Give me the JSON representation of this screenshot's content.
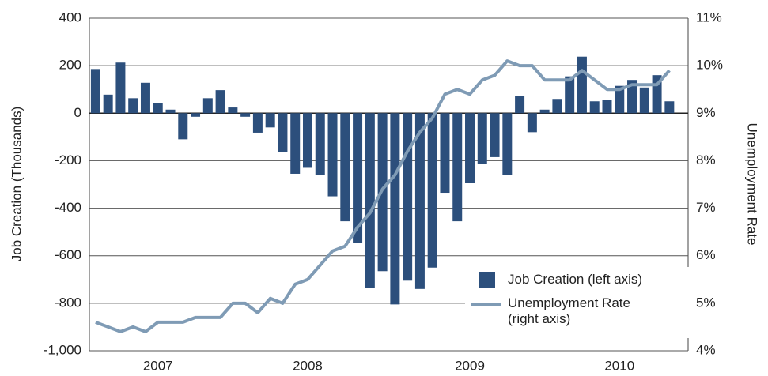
{
  "chart_data": {
    "type": "bar_line",
    "y_label": "Job Creation (Thousands)",
    "y2_label": "Unemployment Rate",
    "categories": [
      null,
      null,
      null,
      null,
      null,
      "2007",
      null,
      null,
      null,
      null,
      null,
      null,
      null,
      null,
      null,
      null,
      null,
      "2008",
      null,
      null,
      null,
      null,
      null,
      null,
      null,
      null,
      null,
      null,
      null,
      null,
      "2009",
      null,
      null,
      null,
      null,
      null,
      null,
      null,
      null,
      null,
      null,
      null,
      "2010",
      null,
      null,
      null,
      null
    ],
    "series": [
      {
        "name": "Job Creation (left axis)",
        "type": "bar",
        "color": "#2c4f7c",
        "axis": "y",
        "values": [
          186,
          78,
          213,
          63,
          128,
          42,
          15,
          -110,
          -15,
          63,
          97,
          24,
          -15,
          -82,
          -60,
          -165,
          -255,
          -230,
          -260,
          -350,
          -455,
          -545,
          -735,
          -665,
          -805,
          -705,
          -740,
          -650,
          -335,
          -455,
          -295,
          -215,
          -185,
          -260,
          72,
          -80,
          15,
          60,
          155,
          238,
          50,
          57,
          115,
          140,
          108,
          160,
          50
        ]
      },
      {
        "name": "Unemployment Rate (right axis)",
        "type": "line",
        "color": "#7f9bb5",
        "axis": "y2",
        "values": [
          4.6,
          4.5,
          4.4,
          4.5,
          4.4,
          4.6,
          4.6,
          4.6,
          4.7,
          4.7,
          4.7,
          5.0,
          5.0,
          4.8,
          5.1,
          5.0,
          5.4,
          5.5,
          5.8,
          6.1,
          6.2,
          6.6,
          6.9,
          7.4,
          7.7,
          8.2,
          8.6,
          8.9,
          9.4,
          9.5,
          9.4,
          9.7,
          9.8,
          10.1,
          10.0,
          10.0,
          9.7,
          9.7,
          9.7,
          9.9,
          9.7,
          9.5,
          9.5,
          9.6,
          9.6,
          9.6,
          9.9
        ]
      }
    ],
    "ylim": [
      -1000,
      400
    ],
    "yticks": [
      {
        "value": -1000,
        "label": "-1,000"
      },
      -800,
      -600,
      -400,
      -200,
      0,
      200,
      400
    ],
    "y2lim": [
      4,
      11
    ],
    "y2ticks": [
      {
        "value": 4,
        "label": "4%"
      },
      {
        "value": 5,
        "label": "5%"
      },
      {
        "value": 6,
        "label": "6%"
      },
      {
        "value": 7,
        "label": "7%"
      },
      {
        "value": 8,
        "label": "8%"
      },
      {
        "value": 9,
        "label": "9%"
      },
      {
        "value": 10,
        "label": "10%"
      },
      {
        "value": 11,
        "label": "11%"
      }
    ],
    "grid": true
  }
}
